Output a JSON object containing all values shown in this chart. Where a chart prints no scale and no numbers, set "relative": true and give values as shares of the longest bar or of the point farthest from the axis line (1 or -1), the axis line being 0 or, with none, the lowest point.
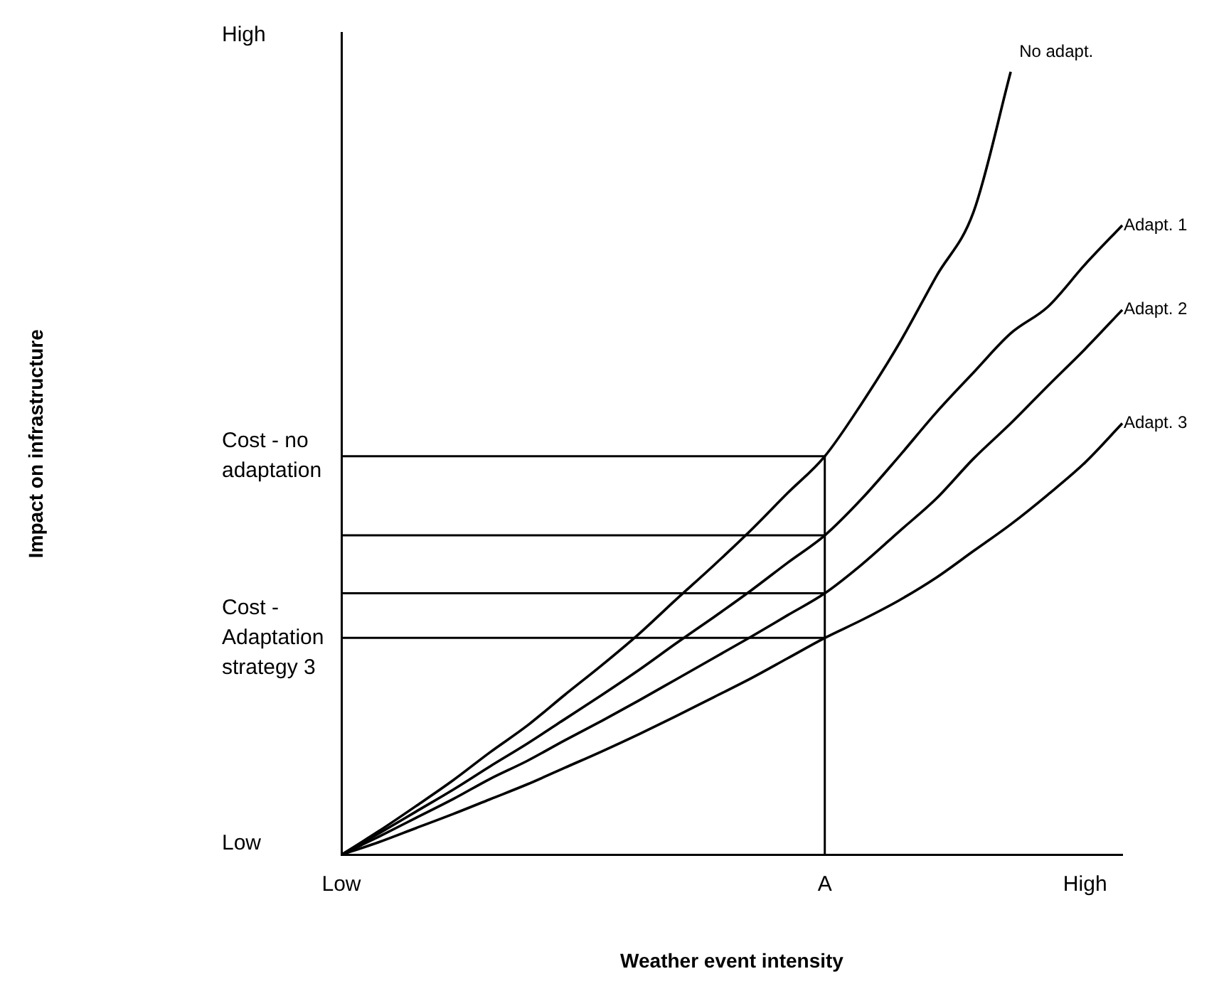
{
  "chart_data": {
    "type": "line",
    "xlabel": "Weather event intensity",
    "relative": true,
    "categories": [
      "Low",
      null,
      null,
      null,
      null,
      null,
      null,
      null,
      null,
      null,
      null,
      null,
      null,
      "A",
      null,
      null,
      null,
      null,
      null,
      null,
      "High",
      null
    ],
    "legend": false,
    "series": [
      {
        "name": "No adapt.",
        "color": "#000000",
        "values": [
          0,
          0.03,
          0.062,
          0.095,
          0.131,
          0.165,
          0.204,
          0.242,
          0.282,
          0.326,
          0.369,
          0.414,
          0.462,
          0.509,
          0.577,
          0.653,
          0.739,
          0.821,
          1,
          null,
          null,
          null
        ]
      },
      {
        "name": "Adapt. 1",
        "color": "#000000",
        "values": [
          0,
          0.027,
          0.055,
          0.083,
          0.113,
          0.142,
          0.173,
          0.204,
          0.236,
          0.27,
          0.303,
          0.337,
          0.373,
          0.408,
          0.455,
          0.509,
          0.565,
          0.616,
          0.666,
          0.7,
          0.754,
          0.804
        ]
      },
      {
        "name": "Adapt. 2",
        "color": "#000000",
        "values": [
          0,
          0.023,
          0.047,
          0.071,
          0.097,
          0.12,
          0.146,
          0.171,
          0.197,
          0.224,
          0.251,
          0.278,
          0.306,
          0.334,
          0.371,
          0.413,
          0.455,
          0.506,
          0.551,
          0.599,
          0.646,
          0.696
        ]
      },
      {
        "name": "Adapt. 3",
        "color": "#000000",
        "values": [
          0,
          0.016,
          0.034,
          0.052,
          0.071,
          0.09,
          0.111,
          0.132,
          0.154,
          0.177,
          0.201,
          0.225,
          0.251,
          0.277,
          0.3,
          0.325,
          0.354,
          0.388,
          0.422,
          0.46,
          0.501,
          0.551
        ]
      }
    ],
    "ref_lines": [
      {
        "axis": "y",
        "value": 0.509,
        "label": "Cost - no adaptation",
        "color": "#000000"
      },
      {
        "axis": "y",
        "value": 0.408,
        "label": null,
        "color": "#000000"
      },
      {
        "axis": "y",
        "value": 0.334,
        "label": null,
        "color": "#000000"
      },
      {
        "axis": "y",
        "value": 0.277,
        "label": "Cost - Adaptation strategy 3",
        "color": "#000000"
      },
      {
        "axis": "x",
        "value": "A",
        "label": null,
        "color": "#000000"
      }
    ],
    "annotations": [
      "High",
      "Low",
      "Impact on infrastructure"
    ]
  }
}
